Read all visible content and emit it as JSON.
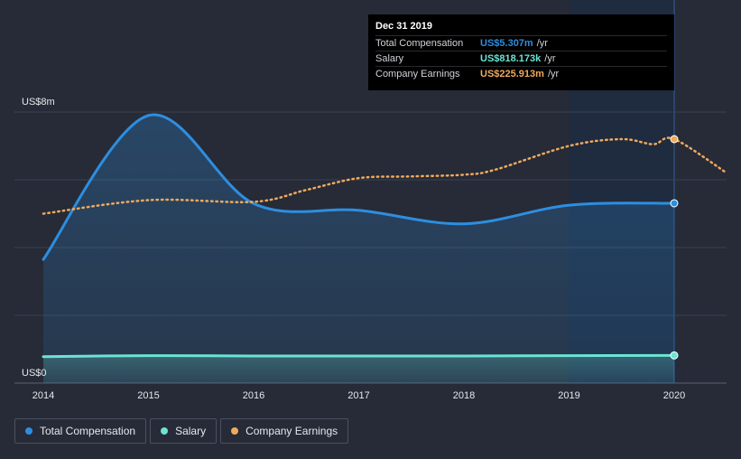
{
  "chart_data": {
    "type": "line",
    "ylabels": {
      "top": "US$8m",
      "bottom": "US$0"
    },
    "ylim": [
      0,
      8
    ],
    "xlim": [
      2014,
      2020.5
    ],
    "x_ticks": [
      "2014",
      "2015",
      "2016",
      "2017",
      "2018",
      "2019",
      "2020"
    ],
    "grid": true,
    "legend_position": "bottom-left",
    "series": [
      {
        "name": "Total Compensation",
        "color": "#2d8ee0",
        "style": "solid-area",
        "points": [
          [
            2014,
            3.65
          ],
          [
            2015,
            7.9
          ],
          [
            2016,
            5.3
          ],
          [
            2017,
            5.1
          ],
          [
            2018,
            4.7
          ],
          [
            2019,
            5.25
          ],
          [
            2020,
            5.307
          ]
        ]
      },
      {
        "name": "Salary",
        "color": "#6ce3d3",
        "style": "solid-area",
        "points": [
          [
            2014,
            0.78
          ],
          [
            2015,
            0.81
          ],
          [
            2016,
            0.8
          ],
          [
            2017,
            0.8
          ],
          [
            2018,
            0.8
          ],
          [
            2019,
            0.81
          ],
          [
            2020,
            0.818
          ]
        ]
      },
      {
        "name": "Company Earnings",
        "color": "#f0a95c",
        "style": "dotted",
        "points": [
          [
            2014,
            5.0
          ],
          [
            2015,
            5.4
          ],
          [
            2016,
            5.35
          ],
          [
            2016.5,
            5.7
          ],
          [
            2017,
            6.05
          ],
          [
            2017.5,
            6.1
          ],
          [
            2018,
            6.15
          ],
          [
            2018.3,
            6.3
          ],
          [
            2019,
            7.0
          ],
          [
            2019.5,
            7.2
          ],
          [
            2019.8,
            7.05
          ],
          [
            2020,
            7.2
          ],
          [
            2020.5,
            6.2
          ]
        ]
      }
    ],
    "highlight_range": [
      2019,
      2020
    ]
  },
  "tooltip": {
    "date": "Dec 31 2019",
    "rows": [
      {
        "label": "Total Compensation",
        "value": "US$5.307m",
        "unit": "/yr",
        "color": "#2d8ee0"
      },
      {
        "label": "Salary",
        "value": "US$818.173k",
        "unit": "/yr",
        "color": "#6ce3d3"
      },
      {
        "label": "Company Earnings",
        "value": "US$225.913m",
        "unit": "/yr",
        "color": "#f0a95c"
      }
    ]
  },
  "legend": [
    {
      "label": "Total Compensation",
      "color": "#2d8ee0"
    },
    {
      "label": "Salary",
      "color": "#6ce3d3"
    },
    {
      "label": "Company Earnings",
      "color": "#f0a95c"
    }
  ]
}
